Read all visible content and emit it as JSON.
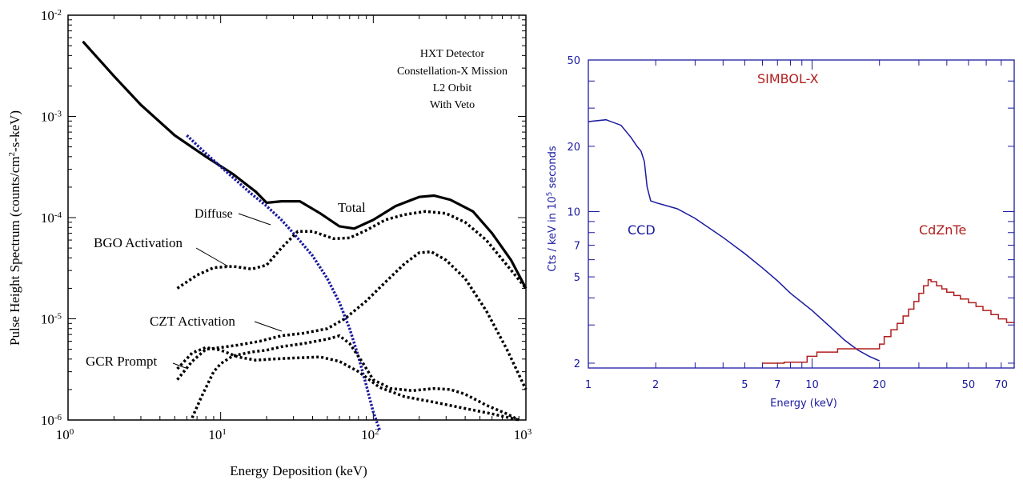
{
  "chart_data": [
    {
      "type": "line",
      "xscale": "log",
      "yscale": "log",
      "xlim": [
        1,
        1000
      ],
      "ylim": [
        1e-06,
        0.01
      ],
      "xlabel": "Energy Deposition (keV)",
      "ylabel_main": "Pulse Height Spectrum (counts/cm",
      "ylabel_sup": "2",
      "ylabel_tail": "-s-keV)",
      "x_ticks": [
        {
          "base": "10",
          "exp": "0",
          "value": 1
        },
        {
          "base": "10",
          "exp": "1",
          "value": 10
        },
        {
          "base": "10",
          "exp": "2",
          "value": 100
        },
        {
          "base": "10",
          "exp": "3",
          "value": 1000
        }
      ],
      "y_ticks": [
        {
          "base": "10",
          "exp": "-6",
          "value": 1e-06
        },
        {
          "base": "10",
          "exp": "-5",
          "value": 1e-05
        },
        {
          "base": "10",
          "exp": "-4",
          "value": 0.0001
        },
        {
          "base": "10",
          "exp": "-3",
          "value": 0.001
        },
        {
          "base": "10",
          "exp": "-2",
          "value": 0.01
        }
      ],
      "info_box": [
        "HXT Detector",
        "Constellation-X Mission",
        "L2 Orbit",
        "With Veto"
      ],
      "annotations": [
        {
          "key": "total",
          "text": "Total",
          "series": "total"
        },
        {
          "key": "diffuse",
          "text": "Diffuse",
          "series": "diffuse"
        },
        {
          "key": "bgo",
          "text": "BGO Activation",
          "series": "bgo"
        },
        {
          "key": "czt",
          "text": "CZT Activation",
          "series": "czt"
        },
        {
          "key": "gcr",
          "text": "GCR Prompt",
          "series": "gcr"
        }
      ],
      "series": [
        {
          "id": "total",
          "color": "#000000",
          "style": "solid",
          "points": [
            [
              1.25,
              0.0055
            ],
            [
              2,
              0.0025
            ],
            [
              3,
              0.0013
            ],
            [
              5,
              0.00065
            ],
            [
              8,
              0.0004
            ],
            [
              12,
              0.00027
            ],
            [
              17,
              0.00018
            ],
            [
              20,
              0.00014
            ],
            [
              25,
              0.000145
            ],
            [
              33,
              0.000145
            ],
            [
              45,
              0.00011
            ],
            [
              60,
              8.2e-05
            ],
            [
              75,
              7.8e-05
            ],
            [
              100,
              9.5e-05
            ],
            [
              140,
              0.00013
            ],
            [
              200,
              0.00016
            ],
            [
              250,
              0.000165
            ],
            [
              320,
              0.00015
            ],
            [
              450,
              0.000115
            ],
            [
              600,
              7e-05
            ],
            [
              800,
              3.8e-05
            ],
            [
              1000,
              2e-05
            ]
          ]
        },
        {
          "id": "diffuse",
          "color": "#1a1aa0",
          "style": "dotted",
          "points": [
            [
              6,
              0.00065
            ],
            [
              8,
              0.00043
            ],
            [
              12,
              0.00025
            ],
            [
              16,
              0.00017
            ],
            [
              20,
              0.00013
            ],
            [
              25,
              9.5e-05
            ],
            [
              30,
              7e-05
            ],
            [
              40,
              4.2e-05
            ],
            [
              50,
              2.5e-05
            ],
            [
              60,
              1.45e-05
            ],
            [
              70,
              8e-06
            ],
            [
              80,
              4.2e-06
            ],
            [
              90,
              2.2e-06
            ],
            [
              100,
              1.2e-06
            ],
            [
              110,
              8e-07
            ]
          ]
        },
        {
          "id": "bgo",
          "color": "#000000",
          "style": "dashed",
          "points": [
            [
              5.2,
              2e-05
            ],
            [
              7,
              2.7e-05
            ],
            [
              9,
              3.2e-05
            ],
            [
              12,
              3.3e-05
            ],
            [
              16,
              3.1e-05
            ],
            [
              20,
              3.4e-05
            ],
            [
              25,
              5e-05
            ],
            [
              32,
              7.3e-05
            ],
            [
              40,
              7.3e-05
            ],
            [
              55,
              6.2e-05
            ],
            [
              70,
              6.3e-05
            ],
            [
              90,
              7.5e-05
            ],
            [
              120,
              9.5e-05
            ],
            [
              160,
              0.000107
            ],
            [
              220,
              0.000115
            ],
            [
              300,
              0.00011
            ],
            [
              400,
              9e-05
            ],
            [
              550,
              6e-05
            ],
            [
              750,
              3.4e-05
            ],
            [
              1000,
              2e-05
            ]
          ]
        },
        {
          "id": "czt",
          "color": "#000000",
          "style": "dashed",
          "points": [
            [
              5.2,
              2.5e-06
            ],
            [
              6.5,
              3.8e-06
            ],
            [
              8,
              5e-06
            ],
            [
              10,
              5.2e-06
            ],
            [
              13,
              5.5e-06
            ],
            [
              18,
              6e-06
            ],
            [
              25,
              6.8e-06
            ],
            [
              35,
              7.2e-06
            ],
            [
              50,
              8e-06
            ],
            [
              65,
              1e-05
            ],
            [
              90,
              1.5e-05
            ],
            [
              120,
              2.3e-05
            ],
            [
              160,
              3.5e-05
            ],
            [
              200,
              4.5e-05
            ],
            [
              240,
              4.6e-05
            ],
            [
              300,
              3.8e-05
            ],
            [
              400,
              2.5e-05
            ],
            [
              550,
              1.2e-05
            ],
            [
              750,
              5e-06
            ],
            [
              1000,
              2e-06
            ]
          ]
        },
        {
          "id": "gcr",
          "color": "#000000",
          "style": "dashed",
          "points": [
            [
              6.5,
              1.05e-06
            ],
            [
              7.5,
              1.7e-06
            ],
            [
              9,
              3e-06
            ],
            [
              10,
              3.6e-06
            ],
            [
              12,
              4.3e-06
            ],
            [
              16,
              4.7e-06
            ],
            [
              20,
              4.9e-06
            ],
            [
              25,
              5.3e-06
            ],
            [
              35,
              5.7e-06
            ],
            [
              50,
              6.3e-06
            ],
            [
              60,
              6.8e-06
            ],
            [
              70,
              5.7e-06
            ],
            [
              85,
              3.7e-06
            ],
            [
              100,
              2.5e-06
            ],
            [
              130,
              2.05e-06
            ],
            [
              180,
              1.95e-06
            ],
            [
              250,
              2.05e-06
            ],
            [
              320,
              2e-06
            ],
            [
              400,
              1.8e-06
            ],
            [
              550,
              1.4e-06
            ],
            [
              750,
              1.15e-06
            ],
            [
              900,
              1e-06
            ]
          ]
        },
        {
          "id": "gcr_low",
          "color": "#000000",
          "style": "dashed",
          "points": [
            [
              5.2,
              3.2e-06
            ],
            [
              6.5,
              4.6e-06
            ],
            [
              8,
              5.2e-06
            ],
            [
              10,
              4.9e-06
            ],
            [
              13,
              4.2e-06
            ],
            [
              17,
              3.9e-06
            ],
            [
              22,
              4e-06
            ],
            [
              30,
              4.1e-06
            ],
            [
              45,
              4.2e-06
            ],
            [
              60,
              3.8e-06
            ],
            [
              80,
              3e-06
            ],
            [
              110,
              2.1e-06
            ],
            [
              160,
              1.7e-06
            ],
            [
              250,
              1.5e-06
            ],
            [
              400,
              1.3e-06
            ],
            [
              600,
              1.15e-06
            ],
            [
              900,
              1e-06
            ]
          ]
        }
      ]
    },
    {
      "type": "line",
      "xscale": "log",
      "yscale": "log",
      "xlim": [
        1,
        80
      ],
      "ylim": [
        1.9,
        50
      ],
      "xlabel": "Energy (keV)",
      "ylabel_main": "Cts / keV in 10",
      "ylabel_sup": "5",
      "ylabel_tail": " seconds",
      "x_ticks": [
        {
          "label": "1",
          "value": 1
        },
        {
          "label": "2",
          "value": 2
        },
        {
          "label": "5",
          "value": 5
        },
        {
          "label": "7",
          "value": 7
        },
        {
          "label": "10",
          "value": 10
        },
        {
          "label": "20",
          "value": 20
        },
        {
          "label": "50",
          "value": 50
        },
        {
          "label": "70",
          "value": 70
        }
      ],
      "y_ticks": [
        {
          "label": "2",
          "value": 2
        },
        {
          "label": "5",
          "value": 5
        },
        {
          "label": "7",
          "value": 7
        },
        {
          "label": "10",
          "value": 10
        },
        {
          "label": "20",
          "value": 20
        },
        {
          "label": "50",
          "value": 50
        }
      ],
      "title": "SIMBOL-X",
      "labels": [
        {
          "key": "ccd",
          "text": "CCD",
          "color": "#1a1aa0"
        },
        {
          "key": "cdznte",
          "text": "CdZnTe",
          "color": "#b01e1e"
        }
      ],
      "colors": {
        "frame": "#1a1aa0",
        "ccd": "#1a1aa0",
        "cdznte": "#b01e1e",
        "title": "#b01e1e"
      },
      "series": [
        {
          "id": "ccd",
          "color": "#1a1aa0",
          "style": "solid",
          "points": [
            [
              1,
              26
            ],
            [
              1.2,
              26.5
            ],
            [
              1.4,
              25
            ],
            [
              1.55,
              22
            ],
            [
              1.65,
              20
            ],
            [
              1.72,
              19
            ],
            [
              1.78,
              17
            ],
            [
              1.83,
              13
            ],
            [
              1.9,
              11.2
            ],
            [
              2,
              11
            ],
            [
              2.5,
              10.3
            ],
            [
              3,
              9.3
            ],
            [
              4,
              7.6
            ],
            [
              5,
              6.4
            ],
            [
              6,
              5.5
            ],
            [
              7,
              4.8
            ],
            [
              8,
              4.2
            ],
            [
              10,
              3.5
            ],
            [
              12,
              2.95
            ],
            [
              14,
              2.55
            ],
            [
              16,
              2.3
            ],
            [
              18,
              2.15
            ],
            [
              20,
              2.05
            ]
          ]
        },
        {
          "id": "cdznte",
          "color": "#b01e1e",
          "style": "step",
          "points": [
            [
              6,
              2
            ],
            [
              7.5,
              2
            ],
            [
              7.5,
              2.02
            ],
            [
              9.5,
              2.02
            ],
            [
              9.5,
              2.15
            ],
            [
              10.5,
              2.15
            ],
            [
              10.5,
              2.25
            ],
            [
              13,
              2.25
            ],
            [
              13,
              2.33
            ],
            [
              20,
              2.33
            ],
            [
              20,
              2.45
            ],
            [
              21,
              2.45
            ],
            [
              21,
              2.65
            ],
            [
              22.5,
              2.65
            ],
            [
              22.5,
              2.85
            ],
            [
              24,
              2.85
            ],
            [
              24,
              3.05
            ],
            [
              25.5,
              3.05
            ],
            [
              25.5,
              3.3
            ],
            [
              27,
              3.3
            ],
            [
              27,
              3.55
            ],
            [
              28.5,
              3.55
            ],
            [
              28.5,
              3.85
            ],
            [
              30,
              3.85
            ],
            [
              30,
              4.2
            ],
            [
              31.5,
              4.2
            ],
            [
              31.5,
              4.55
            ],
            [
              33,
              4.55
            ],
            [
              33,
              4.85
            ],
            [
              34,
              4.85
            ],
            [
              34,
              4.75
            ],
            [
              36,
              4.75
            ],
            [
              36,
              4.55
            ],
            [
              38,
              4.55
            ],
            [
              38,
              4.4
            ],
            [
              40,
              4.4
            ],
            [
              40,
              4.25
            ],
            [
              43,
              4.25
            ],
            [
              43,
              4.1
            ],
            [
              46,
              4.1
            ],
            [
              46,
              3.95
            ],
            [
              50,
              3.95
            ],
            [
              50,
              3.8
            ],
            [
              54,
              3.8
            ],
            [
              54,
              3.65
            ],
            [
              58,
              3.65
            ],
            [
              58,
              3.5
            ],
            [
              63,
              3.5
            ],
            [
              63,
              3.35
            ],
            [
              68,
              3.35
            ],
            [
              68,
              3.2
            ],
            [
              74,
              3.2
            ],
            [
              74,
              3.08
            ],
            [
              80,
              3.08
            ]
          ]
        }
      ]
    }
  ]
}
